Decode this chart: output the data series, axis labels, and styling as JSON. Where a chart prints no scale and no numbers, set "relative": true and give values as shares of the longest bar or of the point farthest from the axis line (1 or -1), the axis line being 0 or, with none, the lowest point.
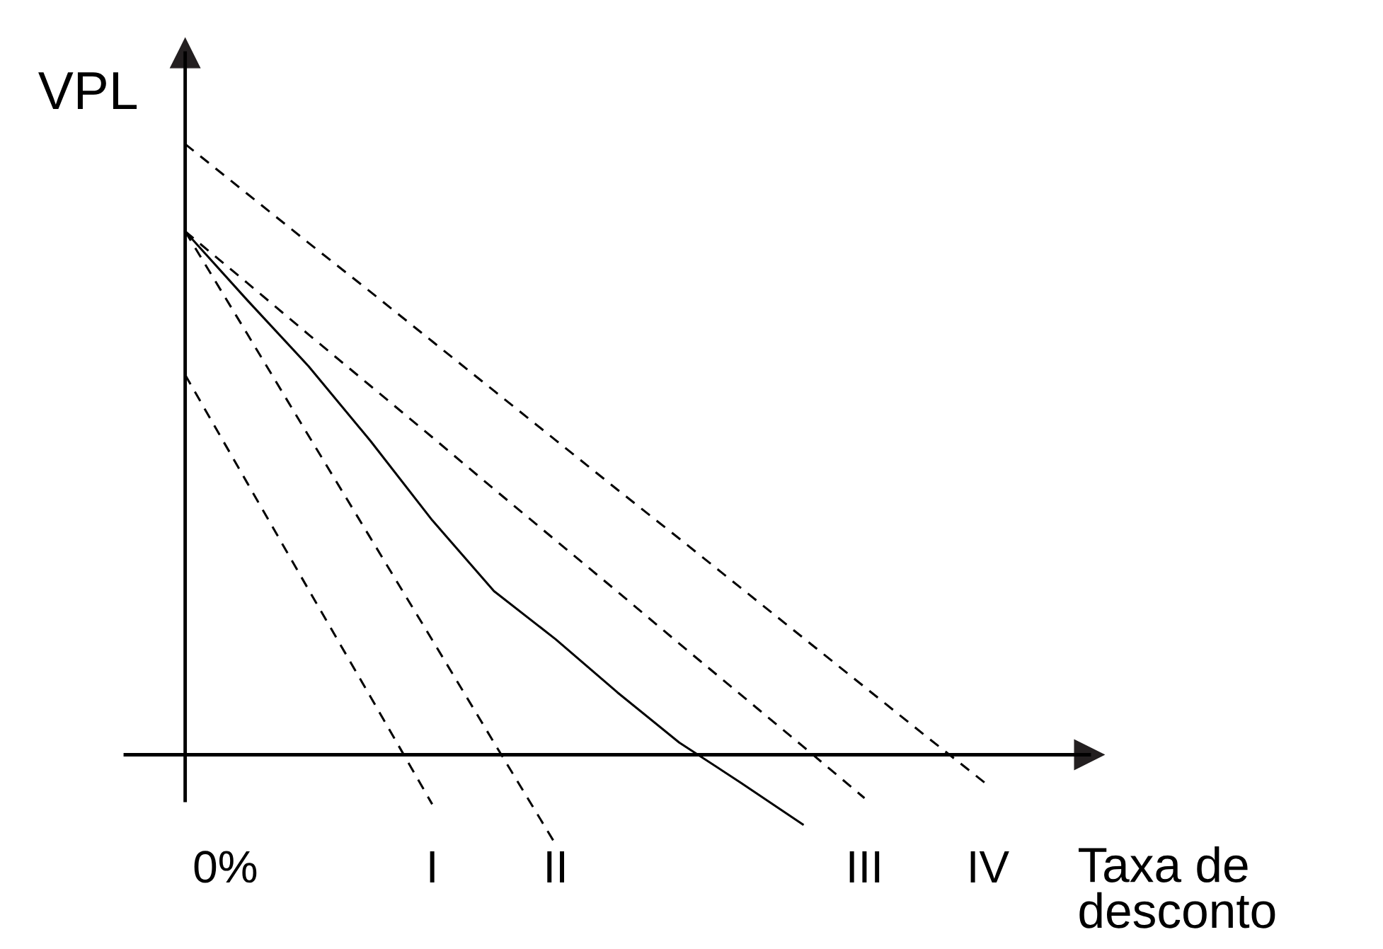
{
  "chart_data": {
    "type": "line",
    "relative": true,
    "xlabel": "Taxa de desconto",
    "ylabel": "VPL",
    "annotations": [
      "0%"
    ],
    "categories": [
      null,
      null,
      null,
      null,
      null,
      null,
      null,
      null,
      null,
      null,
      null,
      null,
      null,
      null,
      null
    ],
    "line_style": "dashed",
    "marker": "none",
    "series": [
      {
        "name": "I",
        "color": "#000000",
        "values": [
          0.622,
          0.446,
          0.27,
          0.095,
          -0.081,
          null,
          null,
          null,
          null,
          null,
          null,
          null,
          null,
          null,
          null
        ]
      },
      {
        "name": "II",
        "color": "#000000",
        "values": [
          0.857,
          0.69,
          0.522,
          0.355,
          0.188,
          0.02,
          -0.147,
          null,
          null,
          null,
          null,
          null,
          null,
          null,
          null
        ]
      },
      {
        "color": "#000000",
        "line_style": "solid",
        "values": [
          0.857,
          0.745,
          0.636,
          0.514,
          0.384,
          0.268,
          0.189,
          0.102,
          0.02,
          -0.046,
          -0.114,
          null,
          null,
          null,
          null
        ]
      },
      {
        "name": "III",
        "color": "#000000",
        "values": [
          0.857,
          0.773,
          0.688,
          0.604,
          0.52,
          0.435,
          0.351,
          0.267,
          0.182,
          0.098,
          0.014,
          -0.071,
          null,
          null,
          null
        ]
      },
      {
        "name": "IV",
        "color": "#000000",
        "values": [
          1,
          0.919,
          0.838,
          0.758,
          0.677,
          0.596,
          0.515,
          0.434,
          0.354,
          0.273,
          0.192,
          0.111,
          0.03,
          -0.05,
          null
        ]
      }
    ]
  }
}
